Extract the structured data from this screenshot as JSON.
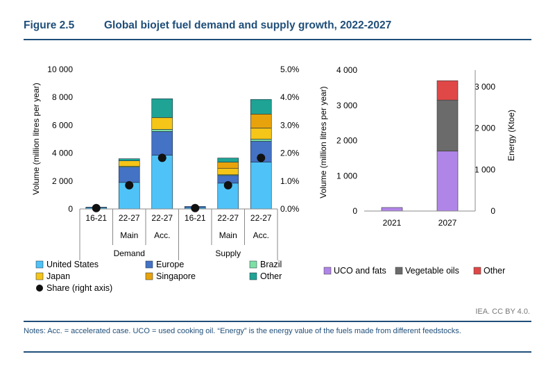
{
  "figure": {
    "number": "Figure 2.5",
    "title": "Global biojet fuel demand and supply growth, 2022-2027",
    "credit": "IEA. CC BY 4.0.",
    "notes": "Notes: Acc. = accelerated case. UCO = used cooking oil. “Energy” is the energy value of the fuels made from different feedstocks."
  },
  "colors": {
    "United States": "#4fc3f7",
    "Europe": "#4472c4",
    "Brazil": "#7ee0a4",
    "Japan": "#f5c518",
    "Singapore": "#e8a30c",
    "Other": "#1fa394",
    "UCO and fats": "#b085e8",
    "Vegetable oils": "#6b6b6b",
    "Other feedstock": "#e04848",
    "share_marker": "#111111",
    "title": "#1f4e79"
  },
  "chart_data": [
    {
      "type": "bar",
      "stacked": true,
      "ylabel": "Volume (million litres per year)",
      "y2label": "",
      "ylim": [
        0,
        10000
      ],
      "y2lim": [
        0,
        5
      ],
      "yticks": [
        "0",
        "2 000",
        "4 000",
        "6 000",
        "8 000",
        "10 000"
      ],
      "y2ticks": [
        "0.0%",
        "1.0%",
        "2.0%",
        "3.0%",
        "4.0%",
        "5.0%"
      ],
      "categories": [
        "16-21",
        "22-27 Main",
        "22-27 Acc.",
        "16-21",
        "22-27 Main",
        "22-27 Acc."
      ],
      "category_labels": [
        {
          "line1": "16-21",
          "line2": ""
        },
        {
          "line1": "22-27",
          "line2": "Main"
        },
        {
          "line1": "22-27",
          "line2": "Acc."
        },
        {
          "line1": "16-21",
          "line2": ""
        },
        {
          "line1": "22-27",
          "line2": "Main"
        },
        {
          "line1": "22-27",
          "line2": "Acc."
        }
      ],
      "groups": [
        "Demand",
        "Supply"
      ],
      "series": [
        {
          "name": "United States",
          "values": [
            90,
            1900,
            3850,
            90,
            1850,
            3350
          ]
        },
        {
          "name": "Europe",
          "values": [
            40,
            1100,
            1700,
            90,
            550,
            1500
          ]
        },
        {
          "name": "Brazil",
          "values": [
            0,
            50,
            150,
            0,
            50,
            150
          ]
        },
        {
          "name": "Japan",
          "values": [
            0,
            400,
            850,
            0,
            450,
            800
          ]
        },
        {
          "name": "Singapore",
          "values": [
            0,
            0,
            0,
            0,
            450,
            1000
          ]
        },
        {
          "name": "Other",
          "values": [
            0,
            150,
            1350,
            0,
            300,
            1050
          ]
        }
      ],
      "share_series": {
        "name": "Share (right axis)",
        "values": [
          0.03,
          0.85,
          1.83,
          0.03,
          0.85,
          1.83
        ]
      },
      "legend": [
        [
          {
            "name": "United States"
          },
          {
            "name": "Europe"
          },
          {
            "name": "Brazil"
          }
        ],
        [
          {
            "name": "Japan"
          },
          {
            "name": "Singapore"
          },
          {
            "name": "Other"
          }
        ],
        [
          {
            "name": "Share (right axis)",
            "marker": "dot"
          }
        ]
      ]
    },
    {
      "type": "bar",
      "stacked": true,
      "ylabel": "Volume (million litres per year)",
      "y2label": "Energy (Ktoe)",
      "ylim": [
        0,
        4000
      ],
      "y2lim": [
        0,
        3400
      ],
      "yticks": [
        "0",
        "1 000",
        "2 000",
        "3 000",
        "4 000"
      ],
      "y2ticks": [
        "0",
        "1 000",
        "2 000",
        "3 000"
      ],
      "categories": [
        "2021",
        "2027"
      ],
      "series": [
        {
          "name": "UCO and fats",
          "values": [
            100,
            1700
          ]
        },
        {
          "name": "Vegetable oils",
          "values": [
            0,
            1450
          ]
        },
        {
          "name": "Other",
          "values": [
            0,
            550
          ]
        }
      ],
      "legend": [
        "UCO and fats",
        "Vegetable oils",
        "Other"
      ]
    }
  ]
}
